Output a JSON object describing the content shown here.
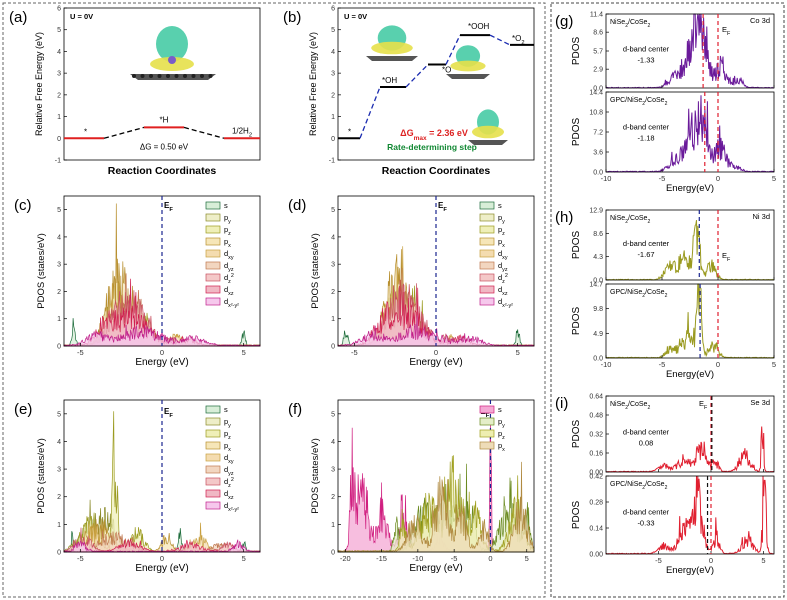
{
  "figure": {
    "layout": "3x2 grid of panels (a)-(f) on the left, 3 stacked panels (g)-(i) on the right in a dashed box"
  },
  "chart_data": [
    {
      "id": "a",
      "type": "line",
      "panel_label": "(a)",
      "title": "U = 0V",
      "ylabel": "Relative Free Energy (eV)",
      "xlabel": "Reaction Coordinates",
      "ylim": [
        -1,
        6
      ],
      "yticks": [
        -1,
        0,
        1,
        2,
        3,
        4,
        5,
        6
      ],
      "steps": [
        {
          "label": "*",
          "x": 0,
          "y": 0
        },
        {
          "label": "*H",
          "x": 1,
          "y": 0.5
        },
        {
          "label": "1/2H2",
          "x": 2,
          "y": 0
        }
      ],
      "annotation": "ΔG = 0.50 eV"
    },
    {
      "id": "b",
      "type": "line",
      "panel_label": "(b)",
      "title": "U = 0V",
      "ylabel": "Relative Free Energy (eV)",
      "xlabel": "Reaction Coordinates",
      "ylim": [
        -1,
        6
      ],
      "yticks": [
        -1,
        0,
        1,
        2,
        3,
        4,
        5,
        6
      ],
      "steps": [
        {
          "label": "*",
          "x": 0,
          "y": 0
        },
        {
          "label": "*OH",
          "x": 1,
          "y": 2.36
        },
        {
          "label": "*O",
          "x": 2,
          "y": 3.4
        },
        {
          "label": "*OOH",
          "x": 3,
          "y": 4.75
        },
        {
          "label": "*O2",
          "x": 4,
          "y": 4.3
        }
      ],
      "annotation_max": "ΔGmax = 2.36 eV",
      "annotation_step": "Rate-determining step"
    },
    {
      "id": "c",
      "type": "area",
      "panel_label": "(c)",
      "ylabel": "PDOS (states/eV)",
      "xlabel": "Energy (eV)",
      "xlim": [
        -6,
        6
      ],
      "ylim": [
        0,
        5.5
      ],
      "xticks": [
        -5,
        0,
        5
      ],
      "yticks": [
        0,
        1,
        2,
        3,
        4,
        5
      ],
      "fermi_label": "EF",
      "legend": [
        "s",
        "py",
        "pz",
        "px",
        "dxy",
        "dyz",
        "dz2",
        "dxz",
        "dx2-y2"
      ]
    },
    {
      "id": "d",
      "type": "area",
      "panel_label": "(d)",
      "ylabel": "PDOS (states/eV)",
      "xlabel": "Energy (eV)",
      "xlim": [
        -6,
        6
      ],
      "ylim": [
        0,
        5.5
      ],
      "xticks": [
        -5,
        0,
        5
      ],
      "yticks": [
        0,
        1,
        2,
        3,
        4,
        5
      ],
      "fermi_label": "EF",
      "legend": [
        "s",
        "py",
        "pz",
        "px",
        "dxy",
        "dyz",
        "dz2",
        "dxz",
        "dx2-y2"
      ]
    },
    {
      "id": "e",
      "type": "area",
      "panel_label": "(e)",
      "ylabel": "PDOS (states/eV)",
      "xlabel": "Energy (eV)",
      "xlim": [
        -6,
        6
      ],
      "ylim": [
        0,
        5.5
      ],
      "xticks": [
        -5,
        0,
        5
      ],
      "yticks": [
        0,
        1,
        2,
        3,
        4,
        5
      ],
      "fermi_label": "EF",
      "legend": [
        "s",
        "py",
        "pz",
        "px",
        "dxy",
        "dyz",
        "dz2",
        "dxz",
        "dx2-y2"
      ]
    },
    {
      "id": "f",
      "type": "area",
      "panel_label": "(f)",
      "ylabel": "PDOS (states/eV)",
      "xlabel": "Energy (eV)",
      "xlim": [
        -21,
        6
      ],
      "ylim": [
        0,
        5.5
      ],
      "xticks": [
        -20,
        -15,
        -10,
        -5,
        0,
        5
      ],
      "yticks": [
        0,
        1,
        2,
        3,
        4,
        5
      ],
      "fermi_label": "EF",
      "legend": [
        "s",
        "py",
        "pz",
        "px"
      ]
    },
    {
      "id": "g",
      "type": "line",
      "panel_label": "(g)",
      "orbital": "Co 3d",
      "ylabel": "PDOS",
      "xlabel": "Energy(eV)",
      "xlim": [
        -10,
        5
      ],
      "xticks": [
        -10,
        -5,
        0,
        5
      ],
      "fermi_label": "EF",
      "subplots": [
        {
          "name": "NiSe2/CoSe2",
          "dband_label": "d-band center",
          "dband_value": "-1.33",
          "ylim": [
            0,
            11.4
          ],
          "yticks": [
            "0.0",
            "2.9",
            "5.7",
            "8.6",
            "11.4"
          ]
        },
        {
          "name": "GPC/NiSe2/CoSe2",
          "dband_label": "d-band center",
          "dband_value": "-1.18",
          "ylim": [
            0,
            14.4
          ],
          "yticks": [
            "0.0",
            "3.6",
            "7.2",
            "10.8",
            "14.4"
          ]
        }
      ]
    },
    {
      "id": "h",
      "type": "line",
      "panel_label": "(h)",
      "orbital": "Ni 3d",
      "ylabel": "PDOS",
      "xlabel": "Energy(eV)",
      "xlim": [
        -10,
        5
      ],
      "xticks": [
        -10,
        -5,
        0,
        5
      ],
      "fermi_label": "EF",
      "subplots": [
        {
          "name": "NiSe2/CoSe2",
          "dband_label": "d-band center",
          "dband_value": "-1.67",
          "ylim": [
            0,
            12.9
          ],
          "yticks": [
            "0.0",
            "4.3",
            "8.6",
            "12.9"
          ]
        },
        {
          "name": "GPC/NiSe2/CoSe2",
          "dband_label": "",
          "dband_value": "",
          "ylim": [
            0,
            14.7
          ],
          "yticks": [
            "0.0",
            "4.9",
            "9.8",
            "14.7"
          ]
        }
      ]
    },
    {
      "id": "i",
      "type": "line",
      "panel_label": "(i)",
      "orbital": "Se 3d",
      "ylabel": "PDOS",
      "xlabel": "Energy(eV)",
      "xlim": [
        -10,
        6
      ],
      "xticks": [
        -5,
        0,
        5
      ],
      "fermi_label": "EF",
      "subplots": [
        {
          "name": "NiSe2/CoSe2",
          "dband_label": "d-band center",
          "dband_value": "0.08",
          "ylim": [
            0,
            0.64
          ],
          "yticks": [
            "0.00",
            "0.16",
            "0.32",
            "0.48",
            "0.64"
          ]
        },
        {
          "name": "GPC/NiSe2/CoSe2",
          "dband_label": "d-band center",
          "dband_value": "-0.33",
          "ylim": [
            0,
            0.42
          ],
          "yticks": [
            "0.00",
            "0.14",
            "0.28",
            "0.42"
          ]
        }
      ]
    }
  ]
}
